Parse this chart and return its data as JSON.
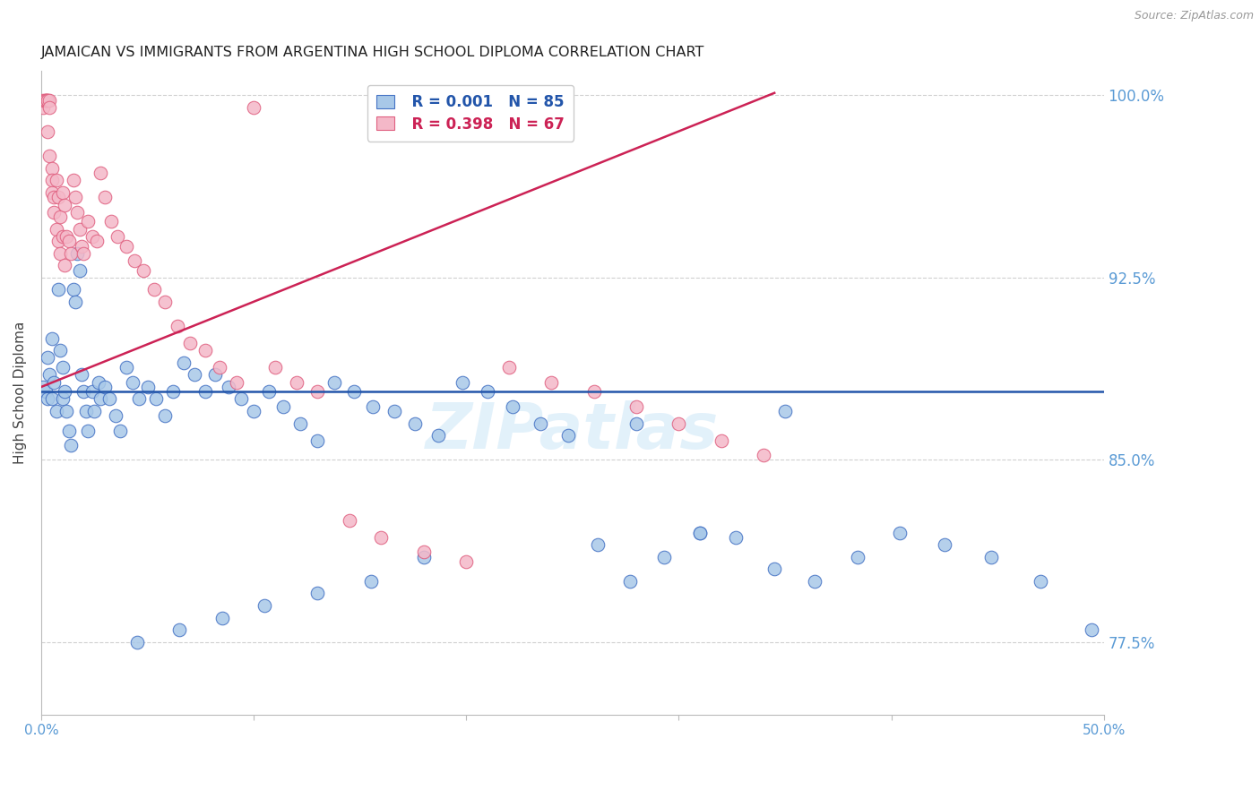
{
  "title": "JAMAICAN VS IMMIGRANTS FROM ARGENTINA HIGH SCHOOL DIPLOMA CORRELATION CHART",
  "source": "Source: ZipAtlas.com",
  "ylabel": "High School Diploma",
  "ytick_labels": [
    "100.0%",
    "92.5%",
    "85.0%",
    "77.5%"
  ],
  "ytick_values": [
    1.0,
    0.925,
    0.85,
    0.775
  ],
  "watermark": "ZIPatlas",
  "legend": {
    "blue_r": "R = 0.001",
    "blue_n": "N = 85",
    "pink_r": "R = 0.398",
    "pink_n": "N = 67"
  },
  "blue_scatter_x": [
    0.001,
    0.002,
    0.003,
    0.003,
    0.004,
    0.005,
    0.005,
    0.006,
    0.007,
    0.008,
    0.009,
    0.01,
    0.01,
    0.011,
    0.012,
    0.013,
    0.014,
    0.015,
    0.016,
    0.017,
    0.018,
    0.019,
    0.02,
    0.021,
    0.022,
    0.024,
    0.025,
    0.027,
    0.028,
    0.03,
    0.032,
    0.035,
    0.037,
    0.04,
    0.043,
    0.046,
    0.05,
    0.054,
    0.058,
    0.062,
    0.067,
    0.072,
    0.077,
    0.082,
    0.088,
    0.094,
    0.1,
    0.107,
    0.114,
    0.122,
    0.13,
    0.138,
    0.147,
    0.156,
    0.166,
    0.176,
    0.187,
    0.198,
    0.21,
    0.222,
    0.235,
    0.248,
    0.262,
    0.277,
    0.293,
    0.31,
    0.327,
    0.345,
    0.364,
    0.384,
    0.404,
    0.425,
    0.447,
    0.47,
    0.494,
    0.35,
    0.28,
    0.31,
    0.18,
    0.155,
    0.13,
    0.105,
    0.085,
    0.065,
    0.045
  ],
  "blue_scatter_y": [
    0.88,
    0.878,
    0.892,
    0.875,
    0.885,
    0.9,
    0.875,
    0.882,
    0.87,
    0.92,
    0.895,
    0.888,
    0.875,
    0.878,
    0.87,
    0.862,
    0.856,
    0.92,
    0.915,
    0.935,
    0.928,
    0.885,
    0.878,
    0.87,
    0.862,
    0.878,
    0.87,
    0.882,
    0.875,
    0.88,
    0.875,
    0.868,
    0.862,
    0.888,
    0.882,
    0.875,
    0.88,
    0.875,
    0.868,
    0.878,
    0.89,
    0.885,
    0.878,
    0.885,
    0.88,
    0.875,
    0.87,
    0.878,
    0.872,
    0.865,
    0.858,
    0.882,
    0.878,
    0.872,
    0.87,
    0.865,
    0.86,
    0.882,
    0.878,
    0.872,
    0.865,
    0.86,
    0.815,
    0.8,
    0.81,
    0.82,
    0.818,
    0.805,
    0.8,
    0.81,
    0.82,
    0.815,
    0.81,
    0.8,
    0.78,
    0.87,
    0.865,
    0.82,
    0.81,
    0.8,
    0.795,
    0.79,
    0.785,
    0.78,
    0.775
  ],
  "pink_scatter_x": [
    0.001,
    0.001,
    0.002,
    0.002,
    0.002,
    0.003,
    0.003,
    0.003,
    0.004,
    0.004,
    0.004,
    0.005,
    0.005,
    0.005,
    0.006,
    0.006,
    0.007,
    0.007,
    0.008,
    0.008,
    0.009,
    0.009,
    0.01,
    0.01,
    0.011,
    0.011,
    0.012,
    0.013,
    0.014,
    0.015,
    0.016,
    0.017,
    0.018,
    0.019,
    0.02,
    0.022,
    0.024,
    0.026,
    0.028,
    0.03,
    0.033,
    0.036,
    0.04,
    0.044,
    0.048,
    0.053,
    0.058,
    0.064,
    0.07,
    0.077,
    0.084,
    0.092,
    0.1,
    0.11,
    0.12,
    0.13,
    0.145,
    0.16,
    0.18,
    0.2,
    0.22,
    0.24,
    0.26,
    0.28,
    0.3,
    0.32,
    0.34
  ],
  "pink_scatter_y": [
    0.995,
    0.998,
    0.998,
    0.998,
    0.998,
    0.998,
    0.998,
    0.985,
    0.998,
    0.995,
    0.975,
    0.97,
    0.965,
    0.96,
    0.958,
    0.952,
    0.965,
    0.945,
    0.958,
    0.94,
    0.95,
    0.935,
    0.96,
    0.942,
    0.955,
    0.93,
    0.942,
    0.94,
    0.935,
    0.965,
    0.958,
    0.952,
    0.945,
    0.938,
    0.935,
    0.948,
    0.942,
    0.94,
    0.968,
    0.958,
    0.948,
    0.942,
    0.938,
    0.932,
    0.928,
    0.92,
    0.915,
    0.905,
    0.898,
    0.895,
    0.888,
    0.882,
    0.995,
    0.888,
    0.882,
    0.878,
    0.825,
    0.818,
    0.812,
    0.808,
    0.888,
    0.882,
    0.878,
    0.872,
    0.865,
    0.858,
    0.852
  ],
  "blue_hline_y": 0.878,
  "pink_line_x0": 0.0,
  "pink_line_x1": 0.345,
  "pink_line_y0": 0.88,
  "pink_line_y1": 1.001,
  "xlim": [
    0.0,
    0.5
  ],
  "ylim": [
    0.745,
    1.01
  ],
  "blue_color": "#a8c8e8",
  "pink_color": "#f4b8c8",
  "blue_edge_color": "#4472c4",
  "pink_edge_color": "#e06080",
  "blue_line_color": "#2255aa",
  "pink_line_color": "#cc2255",
  "grid_color": "#d0d0d0",
  "background_color": "#ffffff",
  "tick_color": "#5b9bd5",
  "title_fontsize": 11.5,
  "axis_label_fontsize": 11
}
